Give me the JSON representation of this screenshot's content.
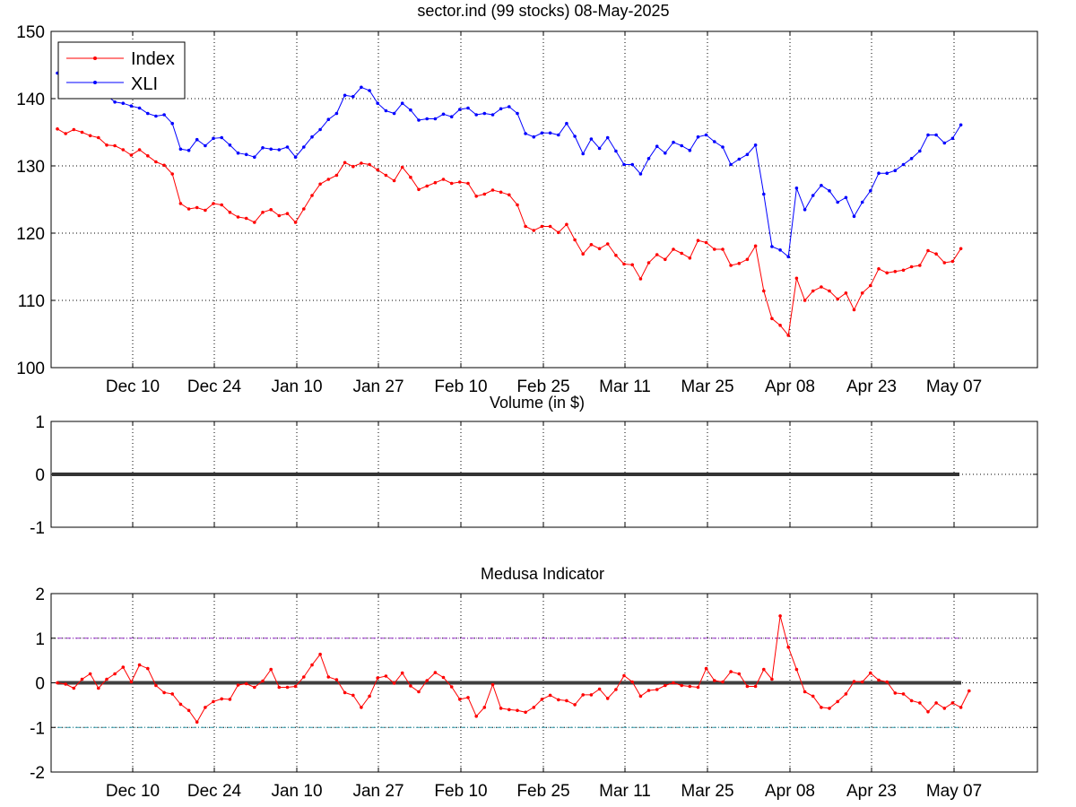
{
  "chart_data": [
    {
      "type": "line",
      "title": "sector.ind (99 stocks)   08-May-2025",
      "xlabel": "",
      "ylabel": "",
      "ylim": [
        100,
        150
      ],
      "yticks": [
        100,
        110,
        120,
        130,
        140,
        150
      ],
      "xticks": [
        "Dec 10",
        "Dec 24",
        "Jan 10",
        "Jan 27",
        "Feb 10",
        "Feb 25",
        "Mar 11",
        "Mar 25",
        "Apr 08",
        "Apr 23",
        "May 07"
      ],
      "grid": true,
      "legend": "top-left",
      "series": [
        {
          "name": "Index",
          "color": "#ff0000",
          "values": [
            135.5,
            134.8,
            135.4,
            135.0,
            134.5,
            134.2,
            133.1,
            133.0,
            132.4,
            131.6,
            132.4,
            131.5,
            130.6,
            130.1,
            128.8,
            124.4,
            123.6,
            123.8,
            123.4,
            124.4,
            124.2,
            123.1,
            122.4,
            122.2,
            121.6,
            123.1,
            123.5,
            122.6,
            122.9,
            121.6,
            123.6,
            125.6,
            127.3,
            128.0,
            128.6,
            130.5,
            129.9,
            130.4,
            130.2,
            129.4,
            128.6,
            127.8,
            129.8,
            128.3,
            126.5,
            127.0,
            127.5,
            128.0,
            127.4,
            127.6,
            127.4,
            125.5,
            125.8,
            126.4,
            126.1,
            125.7,
            124.2,
            121.0,
            120.4,
            121.0,
            121.0,
            120.1,
            121.3,
            119.0,
            116.9,
            118.3,
            117.7,
            118.4,
            116.7,
            115.4,
            115.3,
            113.2,
            115.6,
            116.8,
            116.1,
            117.6,
            117.0,
            116.3,
            118.9,
            118.6,
            117.6,
            117.6,
            115.2,
            115.5,
            116.1,
            118.1,
            111.4,
            107.3,
            106.3,
            104.8,
            113.3,
            110.0,
            111.4,
            112.0,
            111.4,
            110.2,
            111.1,
            108.6,
            111.1,
            112.2,
            114.7,
            114.1,
            114.3,
            114.5,
            115.0,
            115.2,
            117.4,
            116.9,
            115.6,
            115.8,
            117.7
          ]
        },
        {
          "name": "XLI",
          "color": "#0000ff",
          "values": [
            143.8,
            143.0,
            143.4,
            142.7,
            142.2,
            141.5,
            140.5,
            139.5,
            139.3,
            138.9,
            138.6,
            137.8,
            137.4,
            137.6,
            136.3,
            132.5,
            132.3,
            133.9,
            133.0,
            134.1,
            134.2,
            133.1,
            131.9,
            131.7,
            131.3,
            132.7,
            132.5,
            132.4,
            132.8,
            131.3,
            132.8,
            134.3,
            135.4,
            136.9,
            137.8,
            140.5,
            140.3,
            141.7,
            141.2,
            139.3,
            138.2,
            137.8,
            139.3,
            138.3,
            136.8,
            137.0,
            137.0,
            137.7,
            137.3,
            138.4,
            138.6,
            137.6,
            137.8,
            137.6,
            138.5,
            138.8,
            137.8,
            134.8,
            134.3,
            134.9,
            134.9,
            134.6,
            136.3,
            134.4,
            131.8,
            134.0,
            132.6,
            134.2,
            132.2,
            130.2,
            130.2,
            128.8,
            131.1,
            132.9,
            131.9,
            133.5,
            133.0,
            132.3,
            134.3,
            134.6,
            133.6,
            132.8,
            130.2,
            131.0,
            131.7,
            133.1,
            125.8,
            118.0,
            117.5,
            116.5,
            126.7,
            123.5,
            125.6,
            127.1,
            126.3,
            124.6,
            125.3,
            122.5,
            124.6,
            126.3,
            128.9,
            128.9,
            129.3,
            130.2,
            131.1,
            132.2,
            134.6,
            134.6,
            133.4,
            134.1,
            136.1
          ]
        }
      ]
    },
    {
      "type": "line",
      "title": "Volume (in $)",
      "xlabel": "",
      "ylabel": "",
      "ylim": [
        -1,
        1
      ],
      "yticks": [
        -1,
        0,
        1
      ],
      "grid": true,
      "series": [
        {
          "color": "#333333",
          "values": [
            0,
            0
          ]
        }
      ]
    },
    {
      "type": "line",
      "title": "Medusa Indicator",
      "xlabel": "",
      "ylabel": "",
      "ylim": [
        -2,
        2
      ],
      "yticks": [
        -2,
        -1,
        0,
        1,
        2
      ],
      "xticks": [
        "Dec 10",
        "Dec 24",
        "Jan 10",
        "Jan 27",
        "Feb 10",
        "Feb 25",
        "Mar 11",
        "Mar 25",
        "Apr 08",
        "Apr 23",
        "May 07"
      ],
      "grid": true,
      "reference_lines": [
        {
          "value": 1,
          "color": "#9933cc"
        },
        {
          "value": 0,
          "color": "#404040"
        },
        {
          "value": -1,
          "color": "#3399aa"
        }
      ],
      "series": [
        {
          "color": "#ff0000",
          "values": [
            0.0,
            -0.03,
            -0.12,
            0.08,
            0.2,
            -0.12,
            0.08,
            0.2,
            0.35,
            0.02,
            0.4,
            0.32,
            -0.06,
            -0.22,
            -0.25,
            -0.48,
            -0.62,
            -0.88,
            -0.55,
            -0.42,
            -0.36,
            -0.37,
            -0.05,
            -0.02,
            -0.1,
            0.04,
            0.3,
            -0.1,
            -0.1,
            -0.08,
            0.13,
            0.4,
            0.64,
            0.13,
            0.07,
            -0.22,
            -0.28,
            -0.55,
            -0.3,
            0.11,
            0.15,
            -0.01,
            0.22,
            -0.07,
            -0.2,
            0.05,
            0.23,
            0.12,
            -0.09,
            -0.37,
            -0.33,
            -0.75,
            -0.55,
            -0.04,
            -0.57,
            -0.6,
            -0.62,
            -0.66,
            -0.55,
            -0.37,
            -0.28,
            -0.38,
            -0.4,
            -0.49,
            -0.27,
            -0.27,
            -0.14,
            -0.35,
            -0.15,
            0.16,
            0.02,
            -0.3,
            -0.17,
            -0.15,
            -0.06,
            0.0,
            -0.06,
            -0.08,
            -0.1,
            0.32,
            0.05,
            0.02,
            0.25,
            0.2,
            -0.08,
            -0.08,
            0.3,
            0.08,
            1.5,
            0.8,
            0.3,
            -0.2,
            -0.3,
            -0.55,
            -0.57,
            -0.42,
            -0.25,
            0.03,
            0.02,
            0.22,
            0.06,
            0.02,
            -0.23,
            -0.25,
            -0.4,
            -0.45,
            -0.65,
            -0.45,
            -0.57,
            -0.45,
            -0.55,
            -0.18
          ]
        }
      ]
    }
  ]
}
